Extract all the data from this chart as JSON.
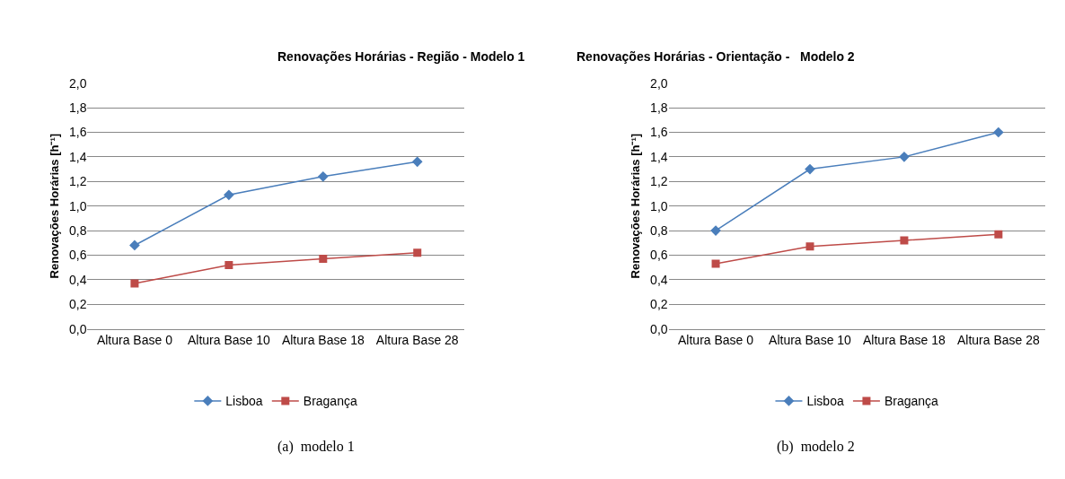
{
  "chart_data": [
    {
      "type": "line",
      "title": "Renovações Horárias - Região - Modelo 1",
      "ylabel": "Renovações Horárias [h⁻¹]",
      "categories": [
        "Altura Base 0",
        "Altura Base 10",
        "Altura Base 18",
        "Altura Base 28"
      ],
      "series": [
        {
          "name": "Lisboa",
          "color": "#4a7ebb",
          "marker": "diamond",
          "values": [
            0.68,
            1.09,
            1.24,
            1.36
          ]
        },
        {
          "name": "Bragança",
          "color": "#be4b48",
          "marker": "square",
          "values": [
            0.37,
            0.52,
            0.57,
            0.62
          ]
        }
      ],
      "ylim": [
        0,
        2
      ],
      "yticks": [
        {
          "value": 0,
          "label": "0,0"
        },
        {
          "value": 0.2,
          "label": "0,2"
        },
        {
          "value": 0.4,
          "label": "0,4"
        },
        {
          "value": 0.6,
          "label": "0,6"
        },
        {
          "value": 0.8,
          "label": "0,8"
        },
        {
          "value": 1,
          "label": "1,0"
        },
        {
          "value": 1.2,
          "label": "1,2"
        },
        {
          "value": 1.4,
          "label": "1,4"
        },
        {
          "value": 1.6,
          "label": "1,6"
        },
        {
          "value": 1.8,
          "label": "1,8"
        },
        {
          "value": 2,
          "label": "2,0"
        }
      ],
      "grid": "y",
      "legend": "bottom",
      "line_style": "solid",
      "annotations": [
        "(a)  modelo 1"
      ]
    },
    {
      "type": "line",
      "title": "Renovações Horárias - Orientação -   Modelo 2",
      "ylabel": "Renovações Horárias [h⁻¹]",
      "categories": [
        "Altura Base 0",
        "Altura Base 10",
        "Altura Base 18",
        "Altura Base 28"
      ],
      "series": [
        {
          "name": "Lisboa",
          "color": "#4a7ebb",
          "marker": "diamond",
          "values": [
            0.8,
            1.3,
            1.4,
            1.6
          ]
        },
        {
          "name": "Bragança",
          "color": "#be4b48",
          "marker": "square",
          "values": [
            0.53,
            0.67,
            0.72,
            0.77
          ]
        }
      ],
      "ylim": [
        0,
        2
      ],
      "yticks": [
        {
          "value": 0,
          "label": "0,0"
        },
        {
          "value": 0.2,
          "label": "0,2"
        },
        {
          "value": 0.4,
          "label": "0,4"
        },
        {
          "value": 0.6,
          "label": "0,6"
        },
        {
          "value": 0.8,
          "label": "0,8"
        },
        {
          "value": 1,
          "label": "1,0"
        },
        {
          "value": 1.2,
          "label": "1,2"
        },
        {
          "value": 1.4,
          "label": "1,4"
        },
        {
          "value": 1.6,
          "label": "1,6"
        },
        {
          "value": 1.8,
          "label": "1,8"
        },
        {
          "value": 2,
          "label": "2,0"
        }
      ],
      "grid": "y",
      "legend": "bottom",
      "line_style": "solid",
      "annotations": [
        "(b)  modelo 2"
      ]
    }
  ]
}
